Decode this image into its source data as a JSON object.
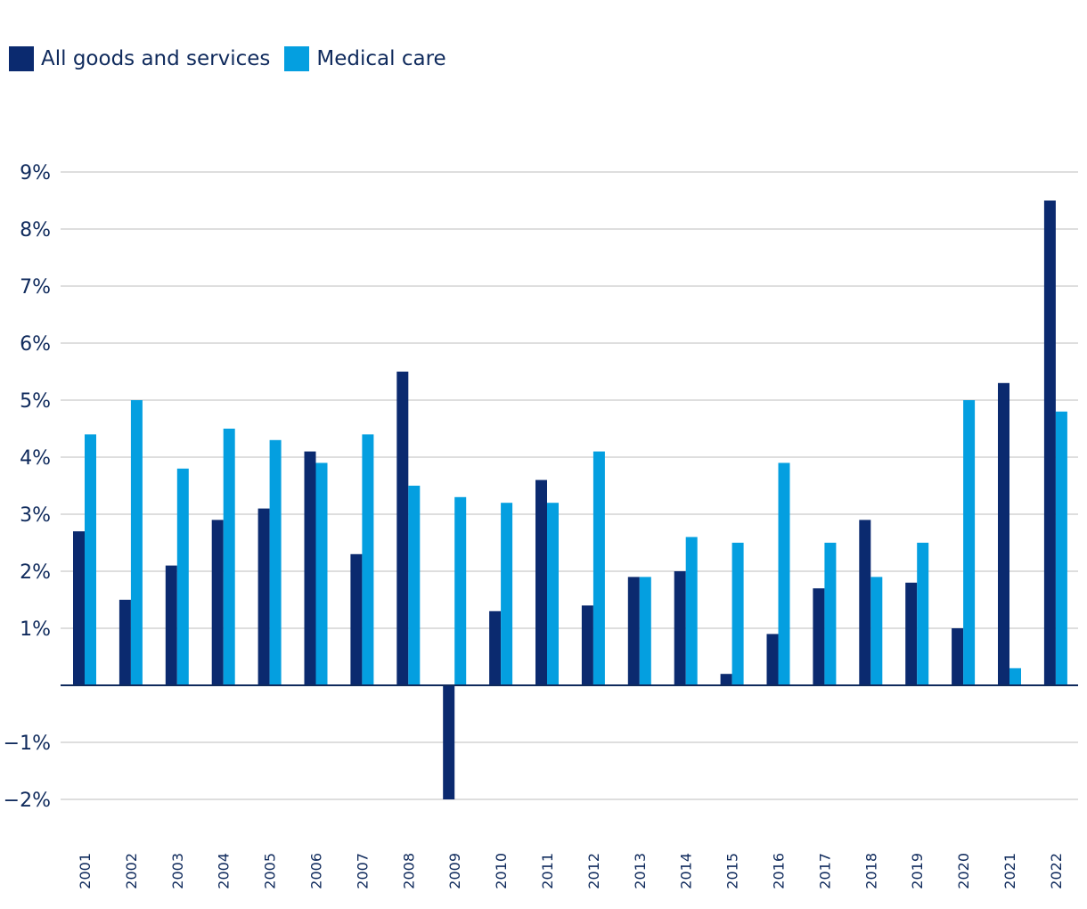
{
  "chart_data": {
    "type": "bar",
    "title": "",
    "xlabel": "",
    "ylabel": "",
    "ylim": [
      -2,
      9
    ],
    "grid": true,
    "legend_position": "top-left",
    "y_ticks": [
      {
        "value": 9,
        "label": "9%"
      },
      {
        "value": 8,
        "label": "8%"
      },
      {
        "value": 7,
        "label": "7%"
      },
      {
        "value": 6,
        "label": "6%"
      },
      {
        "value": 5,
        "label": "5%"
      },
      {
        "value": 4,
        "label": "4%"
      },
      {
        "value": 3,
        "label": "3%"
      },
      {
        "value": 2,
        "label": "2%"
      },
      {
        "value": 1,
        "label": "1%"
      },
      {
        "value": -1,
        "label": "−1%"
      },
      {
        "value": -2,
        "label": "−2%"
      }
    ],
    "categories": [
      "2001",
      "2002",
      "2003",
      "2004",
      "2005",
      "2006",
      "2007",
      "2008",
      "2009",
      "2010",
      "2011",
      "2012",
      "2013",
      "2014",
      "2015",
      "2016",
      "2017",
      "2018",
      "2019",
      "2020",
      "2021",
      "2022"
    ],
    "series": [
      {
        "name": "All goods and services",
        "color": "#0b2a6f",
        "values": [
          2.7,
          1.5,
          2.1,
          2.9,
          3.1,
          4.1,
          2.3,
          5.5,
          -2.0,
          1.3,
          3.6,
          1.4,
          1.9,
          2.0,
          0.2,
          0.9,
          1.7,
          2.9,
          1.8,
          1.0,
          5.3,
          8.5
        ]
      },
      {
        "name": "Medical care",
        "color": "#049fe0",
        "values": [
          4.4,
          5.0,
          3.8,
          4.5,
          4.3,
          3.9,
          4.4,
          3.5,
          3.3,
          3.2,
          3.2,
          4.1,
          1.9,
          2.6,
          2.5,
          3.9,
          2.5,
          1.9,
          2.5,
          5.0,
          0.3,
          4.8
        ]
      }
    ]
  }
}
